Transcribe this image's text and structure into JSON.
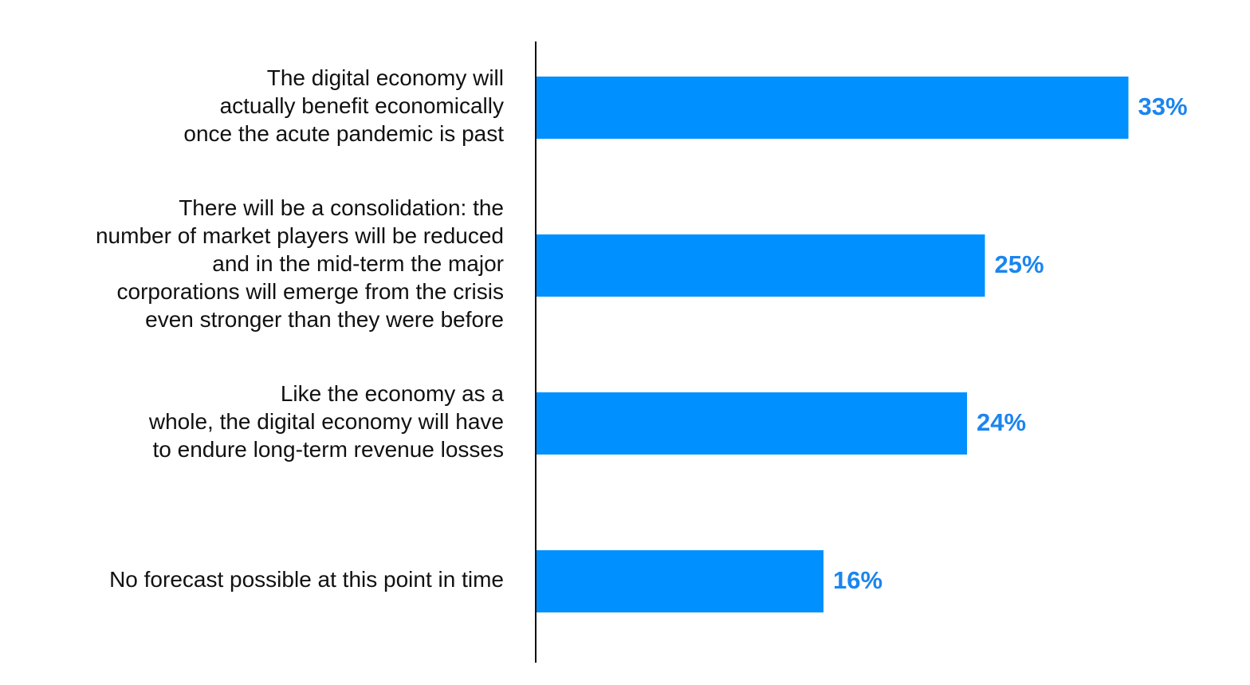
{
  "chart_data": {
    "type": "bar",
    "orientation": "horizontal",
    "categories": [
      "The digital economy will\nactually benefit economically\nonce the acute pandemic is past",
      "There will be a consolidation: the\nnumber of market players will be reduced\nand in the mid-term the major\ncorporations will emerge from the crisis\neven stronger than they were before",
      "Like the economy as a\nwhole, the digital economy will have\nto endure long-term revenue losses",
      "No forecast possible at this point in time"
    ],
    "values": [
      33,
      25,
      24,
      16
    ],
    "value_labels": [
      "33%",
      "25%",
      "24%",
      "16%"
    ],
    "color": "#0090ff",
    "value_label_color": "#1a85f0"
  }
}
